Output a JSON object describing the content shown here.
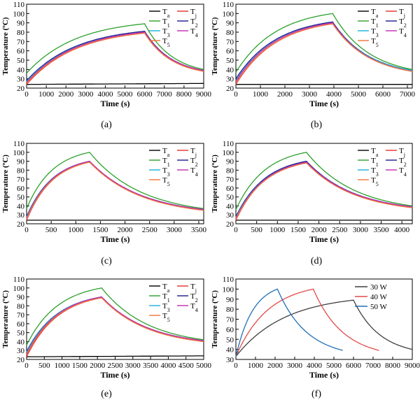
{
  "colors": {
    "Ta": "#000000",
    "Tj": "#e3302b",
    "T1": "#2ca02c",
    "T2": "#1a1a8c",
    "T3": "#1ab0d8",
    "T4": "#c42bb0",
    "T5": "#f0743a",
    "30 W": "#3f3f3f",
    "40 W": "#e24a4a",
    "50 W": "#1f6fb5"
  },
  "chart_data": [
    {
      "type": "line",
      "panel_label": "(a)",
      "xlabel": "Time (s)",
      "ylabel": "Temperature (ºC)",
      "xlim": [
        0,
        9000
      ],
      "ylim": [
        20,
        110
      ],
      "xticks": [
        0,
        1000,
        2000,
        3000,
        4000,
        5000,
        6000,
        7000,
        8000,
        9000
      ],
      "yticks": [
        20,
        30,
        40,
        50,
        60,
        70,
        80,
        90,
        100,
        110
      ],
      "legend_position": "top-right",
      "heating_end": 6000,
      "series": [
        {
          "name": "T",
          "sub": "a",
          "start": 24,
          "peak": 25,
          "end": 25,
          "ambient": true
        },
        {
          "name": "T",
          "sub": "j",
          "start": 24,
          "peak": 79,
          "end": 38
        },
        {
          "name": "T",
          "sub": "1",
          "start": 36,
          "peak": 89,
          "end": 40
        },
        {
          "name": "T",
          "sub": "2",
          "start": 28,
          "peak": 81,
          "end": 39
        },
        {
          "name": "T",
          "sub": "3",
          "start": 27,
          "peak": 80,
          "end": 39
        },
        {
          "name": "T",
          "sub": "4",
          "start": 26,
          "peak": 80,
          "end": 39
        },
        {
          "name": "T",
          "sub": "5",
          "start": 25,
          "peak": 79,
          "end": 38
        }
      ]
    },
    {
      "type": "line",
      "panel_label": "(b)",
      "xlabel": "Time (s)",
      "ylabel": "Temperature (ºC)",
      "xlim": [
        0,
        7200
      ],
      "ylim": [
        20,
        110
      ],
      "xticks": [
        0,
        1000,
        2000,
        3000,
        4000,
        5000,
        6000,
        7000
      ],
      "yticks": [
        20,
        30,
        40,
        50,
        60,
        70,
        80,
        90,
        100,
        110
      ],
      "legend_position": "top-right",
      "heating_end": 3950,
      "series": [
        {
          "name": "T",
          "sub": "a",
          "start": 24,
          "peak": 24,
          "end": 24,
          "ambient": true
        },
        {
          "name": "T",
          "sub": "j",
          "start": 24,
          "peak": 89,
          "end": 38
        },
        {
          "name": "T",
          "sub": "1",
          "start": 37,
          "peak": 100,
          "end": 40
        },
        {
          "name": "T",
          "sub": "2",
          "start": 30,
          "peak": 91,
          "end": 39
        },
        {
          "name": "T",
          "sub": "3",
          "start": 28,
          "peak": 90,
          "end": 39
        },
        {
          "name": "T",
          "sub": "4",
          "start": 27,
          "peak": 90,
          "end": 38
        },
        {
          "name": "T",
          "sub": "5",
          "start": 25,
          "peak": 89,
          "end": 38
        }
      ]
    },
    {
      "type": "line",
      "panel_label": "(c)",
      "xlabel": "Time (s)",
      "ylabel": "Temperature (ºC)",
      "xlim": [
        0,
        3600
      ],
      "ylim": [
        20,
        110
      ],
      "xticks": [
        0,
        500,
        1000,
        1500,
        2000,
        2500,
        3000,
        3500
      ],
      "yticks": [
        20,
        30,
        40,
        50,
        60,
        70,
        80,
        90,
        100,
        110
      ],
      "legend_position": "top-right",
      "heating_end": 1280,
      "series": [
        {
          "name": "T",
          "sub": "a",
          "start": 24,
          "peak": 24,
          "end": 24,
          "ambient": true
        },
        {
          "name": "T",
          "sub": "j",
          "start": 24,
          "peak": 89,
          "end": 36
        },
        {
          "name": "T",
          "sub": "1",
          "start": 37,
          "peak": 100,
          "end": 37
        },
        {
          "name": "T",
          "sub": "2",
          "start": 28,
          "peak": 90,
          "end": 36
        },
        {
          "name": "T",
          "sub": "3",
          "start": 27,
          "peak": 90,
          "end": 36
        },
        {
          "name": "T",
          "sub": "4",
          "start": 26,
          "peak": 90,
          "end": 36
        },
        {
          "name": "T",
          "sub": "5",
          "start": 25,
          "peak": 89,
          "end": 35
        }
      ]
    },
    {
      "type": "line",
      "panel_label": "(d)",
      "xlabel": "Time (s)",
      "ylabel": "Temperature (ºC)",
      "xlim": [
        0,
        4250
      ],
      "ylim": [
        20,
        110
      ],
      "xticks": [
        0,
        500,
        1000,
        1500,
        2000,
        2500,
        3000,
        3500,
        4000
      ],
      "yticks": [
        20,
        30,
        40,
        50,
        60,
        70,
        80,
        90,
        100,
        110
      ],
      "legend_position": "top-right",
      "heating_end": 1700,
      "series": [
        {
          "name": "T",
          "sub": "a",
          "start": 24,
          "peak": 24,
          "end": 24,
          "ambient": true
        },
        {
          "name": "T",
          "sub": "j",
          "start": 24,
          "peak": 89,
          "end": 38
        },
        {
          "name": "T",
          "sub": "1",
          "start": 36,
          "peak": 100,
          "end": 40
        },
        {
          "name": "T",
          "sub": "2",
          "start": 28,
          "peak": 90,
          "end": 39
        },
        {
          "name": "T",
          "sub": "3",
          "start": 27,
          "peak": 89,
          "end": 39
        },
        {
          "name": "T",
          "sub": "4",
          "start": 26,
          "peak": 89,
          "end": 39
        },
        {
          "name": "T",
          "sub": "5",
          "start": 25,
          "peak": 88,
          "end": 38
        }
      ]
    },
    {
      "type": "line",
      "panel_label": "(e)",
      "xlabel": "Time (s)",
      "ylabel": "Temperature (ºC)",
      "xlim": [
        0,
        5000
      ],
      "ylim": [
        20,
        110
      ],
      "xticks": [
        0,
        500,
        1000,
        1500,
        2000,
        2500,
        3000,
        3500,
        4000,
        4500,
        5000
      ],
      "yticks": [
        20,
        30,
        40,
        50,
        60,
        70,
        80,
        90,
        100,
        110
      ],
      "legend_position": "top-right",
      "heating_end": 2120,
      "series": [
        {
          "name": "T",
          "sub": "a",
          "start": 23,
          "peak": 24,
          "end": 24,
          "ambient": true
        },
        {
          "name": "T",
          "sub": "j",
          "start": 23,
          "peak": 89,
          "end": 40
        },
        {
          "name": "T",
          "sub": "1",
          "start": 36,
          "peak": 100,
          "end": 42
        },
        {
          "name": "T",
          "sub": "2",
          "start": 29,
          "peak": 90,
          "end": 41
        },
        {
          "name": "T",
          "sub": "3",
          "start": 28,
          "peak": 90,
          "end": 41
        },
        {
          "name": "T",
          "sub": "4",
          "start": 26,
          "peak": 90,
          "end": 41
        },
        {
          "name": "T",
          "sub": "5",
          "start": 25,
          "peak": 89,
          "end": 40
        }
      ]
    },
    {
      "type": "line",
      "panel_label": "(f)",
      "xlabel": "Time (s)",
      "ylabel": "Temperature (ºC)",
      "xlim": [
        0,
        9000
      ],
      "ylim": [
        30,
        110
      ],
      "xticks": [
        0,
        1000,
        2000,
        3000,
        4000,
        5000,
        6000,
        7000,
        8000,
        9000
      ],
      "yticks": [
        30,
        40,
        50,
        60,
        70,
        80,
        90,
        100,
        110
      ],
      "legend_position": "top-right",
      "series": [
        {
          "name": "30 W",
          "sub": "",
          "start": 33,
          "peak": 89,
          "end": 40,
          "heating_end": 6000,
          "x_end": 9000
        },
        {
          "name": "40 W",
          "sub": "",
          "start": 33,
          "peak": 100,
          "end": 39,
          "heating_end": 3950,
          "x_end": 7300
        },
        {
          "name": "50 W",
          "sub": "",
          "start": 33,
          "peak": 100,
          "end": 39,
          "heating_end": 2120,
          "x_end": 5450
        }
      ]
    }
  ]
}
